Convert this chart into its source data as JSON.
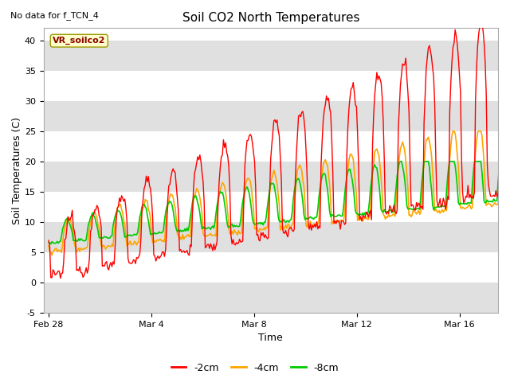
{
  "title": "Soil CO2 North Temperatures",
  "subtitle": "No data for f_TCN_4",
  "xlabel": "Time",
  "ylabel": "Soil Temperatures (C)",
  "legend_label": "VR_soilco2",
  "ylim": [
    -5,
    42
  ],
  "yticks": [
    -5,
    0,
    5,
    10,
    15,
    20,
    25,
    30,
    35,
    40
  ],
  "bg_color": "#ffffff",
  "band_color": "#e0e0e0",
  "line_colors": {
    "2cm": "#ff0000",
    "4cm": "#ffa500",
    "8cm": "#00cc00"
  },
  "legend_labels": [
    "-2cm",
    "-4cm",
    "-8cm"
  ],
  "xtick_labels": [
    "Feb 28",
    "Mar 4",
    "Mar 8",
    "Mar 12",
    "Mar 16"
  ],
  "xtick_positions": [
    0,
    4,
    8,
    12,
    16
  ],
  "n_days": 18
}
